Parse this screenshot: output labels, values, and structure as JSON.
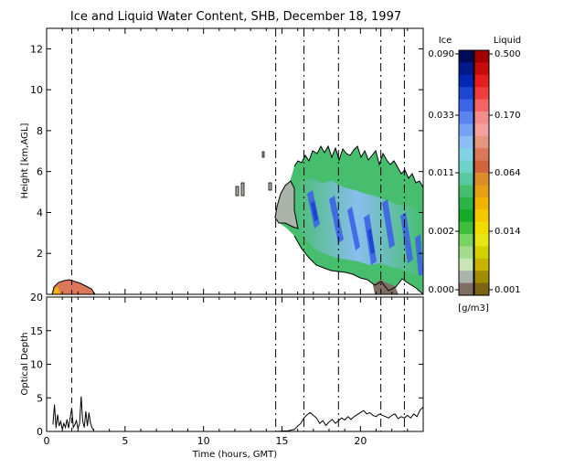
{
  "chart_data": [
    {
      "type": "heatmap",
      "title": "Ice and Liquid Water Content, SHB, December 18, 1997",
      "xlabel": "",
      "ylabel": "Height [km,AGL]",
      "xlim": [
        0,
        24
      ],
      "ylim": [
        0,
        13
      ],
      "xticks": [
        "0",
        "5",
        "10",
        "15",
        "20"
      ],
      "yticks": [
        "2",
        "4",
        "6",
        "8",
        "10",
        "12"
      ],
      "event_lines_hours": [
        1.6,
        14.6,
        16.4,
        18.6,
        21.3,
        22.8
      ],
      "colorbar": {
        "ice_label": "Ice",
        "liquid_label": "Liquid",
        "unit": "[g/m3]",
        "ice_ticks": [
          "0.090",
          "0.033",
          "0.011",
          "0.002",
          "0.000"
        ],
        "liquid_ticks": [
          "0.500",
          "0.170",
          "0.064",
          "0.014",
          "0.001"
        ],
        "ice_colors": [
          "#000a5a",
          "#001a8c",
          "#0028b4",
          "#1e46d2",
          "#3c64e6",
          "#5a82f0",
          "#78a0f5",
          "#8cbef5",
          "#82d2e6",
          "#6ed2c8",
          "#5ac8a0",
          "#46be6e",
          "#2db446",
          "#14aa28",
          "#3cbe3c",
          "#78d264",
          "#a0dc8c",
          "#c8e6b4",
          "#aab4aa",
          "#806e64"
        ],
        "liquid_colors": [
          "#a00000",
          "#c80a0a",
          "#e61e1e",
          "#f03c3c",
          "#f56464",
          "#f58c8c",
          "#f5a0a0",
          "#e6967e",
          "#dc785a",
          "#d2643c",
          "#dc8c28",
          "#e6a014",
          "#f0b400",
          "#f5c800",
          "#f0dc00",
          "#e6e614",
          "#d2d200",
          "#c8b400",
          "#a08c00",
          "#7d6414"
        ]
      }
    },
    {
      "type": "line",
      "title": "",
      "xlabel": "Time (hours, GMT)",
      "ylabel": "Optical Depth",
      "xlim": [
        0,
        24
      ],
      "ylim": [
        0,
        20
      ],
      "xticks": [
        "0",
        "5",
        "10",
        "15",
        "20"
      ],
      "yticks": [
        "0",
        "5",
        "10",
        "15",
        "20"
      ],
      "series": [
        {
          "x": [
            0.4,
            0.5,
            0.6,
            0.7,
            0.8,
            0.9,
            1.0,
            1.1,
            1.2,
            1.3,
            1.4,
            1.5,
            1.6,
            1.7,
            1.8,
            1.9,
            2.0,
            2.1,
            2.2,
            2.3,
            2.4,
            2.5,
            2.6,
            2.7,
            2.8,
            2.9,
            3.0
          ],
          "y": [
            1.0,
            4.0,
            0.5,
            2.5,
            0.8,
            1.5,
            0.3,
            1.2,
            0.6,
            1.8,
            0.5,
            2.0,
            3.5,
            0.6,
            1.0,
            1.6,
            0.4,
            1.2,
            5.2,
            1.5,
            0.6,
            3.0,
            0.8,
            2.8,
            1.2,
            0.5,
            0.2
          ]
        },
        {
          "x": [
            14.6,
            15.0,
            15.4,
            15.8,
            16.0,
            16.2,
            16.4,
            16.6,
            16.8,
            17.0,
            17.2,
            17.4,
            17.6,
            17.8,
            18.0,
            18.2,
            18.4,
            18.6,
            18.8,
            19.0,
            19.2,
            19.4,
            19.6,
            19.8,
            20.0,
            20.2,
            20.4,
            20.6,
            20.8,
            21.0,
            21.2,
            21.4,
            21.6,
            21.8,
            22.0,
            22.2,
            22.4,
            22.6,
            22.8,
            23.0,
            23.2,
            23.4,
            23.6,
            23.8,
            24.0
          ],
          "y": [
            0.0,
            0.05,
            0.1,
            0.3,
            0.8,
            1.2,
            2.0,
            2.5,
            2.8,
            2.4,
            2.0,
            1.2,
            1.6,
            0.9,
            1.4,
            1.8,
            1.2,
            1.6,
            2.0,
            1.7,
            2.2,
            1.8,
            2.2,
            2.5,
            2.8,
            3.1,
            2.6,
            2.8,
            2.4,
            2.2,
            2.6,
            2.4,
            2.2,
            2.0,
            2.4,
            2.6,
            1.9,
            2.2,
            2.0,
            2.4,
            2.0,
            2.6,
            2.2,
            3.2,
            3.6
          ]
        }
      ]
    }
  ]
}
